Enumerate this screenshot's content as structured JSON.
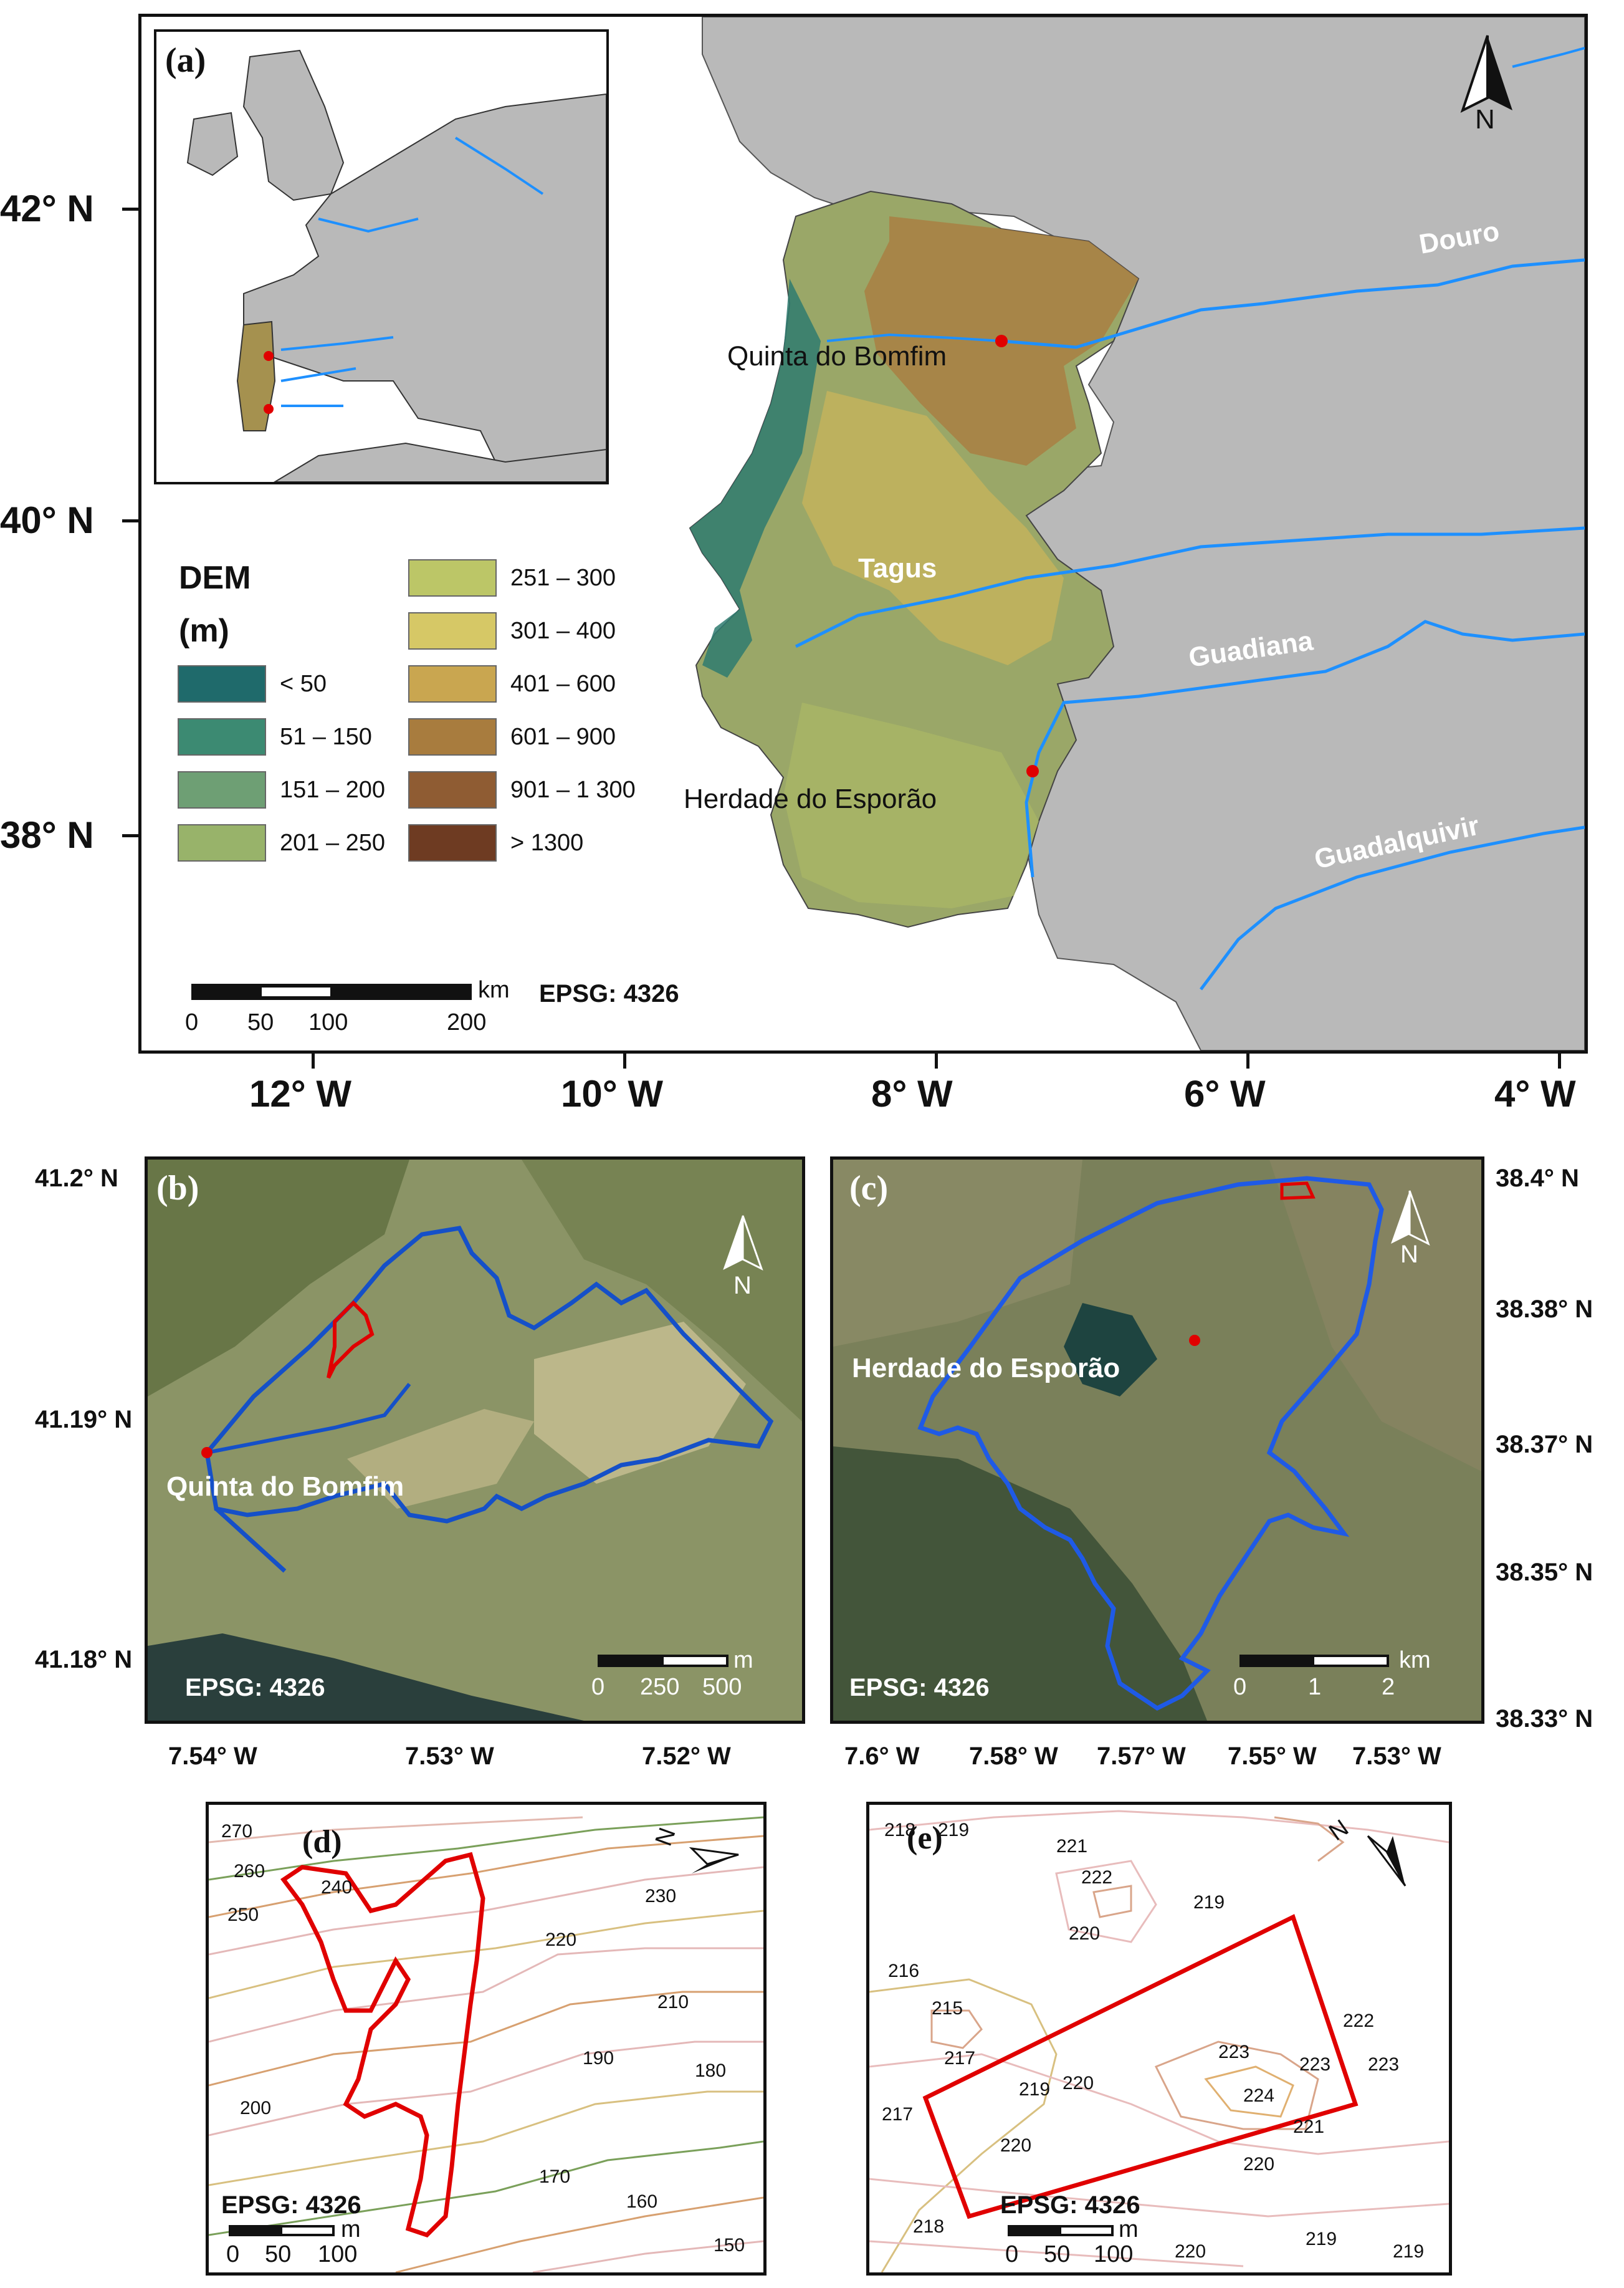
{
  "panel_a": {
    "label": "(a)",
    "lat_ticks": [
      "42° N",
      "40° N",
      "38° N"
    ],
    "lon_ticks": [
      "12° W",
      "10° W",
      "8° W",
      "6° W",
      "4° W"
    ],
    "legend": {
      "title": "DEM",
      "unit": "(m)",
      "classes": [
        {
          "label": "< 50",
          "color": "#1f6a6b"
        },
        {
          "label": "51 – 150",
          "color": "#3c8a72"
        },
        {
          "label": "151 – 200",
          "color": "#6e9f74"
        },
        {
          "label": "201 – 250",
          "color": "#98b36a"
        },
        {
          "label": "251 – 300",
          "color": "#bcc667"
        },
        {
          "label": "301 – 400",
          "color": "#d6c866"
        },
        {
          "label": "401 – 600",
          "color": "#c9a650"
        },
        {
          "label": "601 – 900",
          "color": "#a87c3e"
        },
        {
          "label": "901 – 1 300",
          "color": "#8f5c33"
        },
        {
          "label": "> 1300",
          "color": "#6e3b22"
        }
      ]
    },
    "places": [
      "Quinta do Bomfim",
      "Herdade do Esporão"
    ],
    "rivers": [
      "Douro",
      "Tagus",
      "Guadiana",
      "Guadalquivir"
    ],
    "scale": {
      "unit": "km",
      "ticks": [
        "0",
        "50",
        "100",
        "200"
      ]
    },
    "epsg": "EPSG: 4326",
    "north": "N"
  },
  "panel_b": {
    "label": "(b)",
    "lat_ticks": [
      "41.2° N",
      "41.19° N",
      "41.18° N"
    ],
    "lon_ticks": [
      "7.54° W",
      "7.53° W",
      "7.52° W"
    ],
    "place": "Quinta do Bomfim",
    "scale": {
      "unit": "m",
      "ticks": [
        "0",
        "250",
        "500"
      ]
    },
    "epsg": "EPSG: 4326",
    "north": "N"
  },
  "panel_c": {
    "label": "(c)",
    "lat_ticks": [
      "38.4° N",
      "38.38° N",
      "38.37° N",
      "38.35° N",
      "38.33° N"
    ],
    "lon_ticks": [
      "7.6° W",
      "7.58° W",
      "7.57° W",
      "7.55° W",
      "7.53° W"
    ],
    "place": "Herdade do Esporão",
    "scale": {
      "unit": "km",
      "ticks": [
        "0",
        "1",
        "2"
      ]
    },
    "epsg": "EPSG: 4326",
    "north": "N"
  },
  "panel_d": {
    "label": "(d)",
    "contours": [
      "270",
      "260",
      "250",
      "240",
      "230",
      "220",
      "210",
      "200",
      "190",
      "180",
      "170",
      "160",
      "150"
    ],
    "scale": {
      "unit": "m",
      "ticks": [
        "0",
        "50",
        "100"
      ]
    },
    "epsg": "EPSG: 4326",
    "north": "N"
  },
  "panel_e": {
    "label": "(e)",
    "contours": [
      "218",
      "219",
      "221",
      "222",
      "220",
      "219",
      "216",
      "215",
      "217",
      "219",
      "220",
      "223",
      "222",
      "223",
      "224",
      "223",
      "221",
      "217",
      "220",
      "220",
      "218",
      "220",
      "219",
      "219"
    ],
    "scale": {
      "unit": "m",
      "ticks": [
        "0",
        "50",
        "100"
      ]
    },
    "epsg": "EPSG: 4326",
    "north": "N"
  }
}
